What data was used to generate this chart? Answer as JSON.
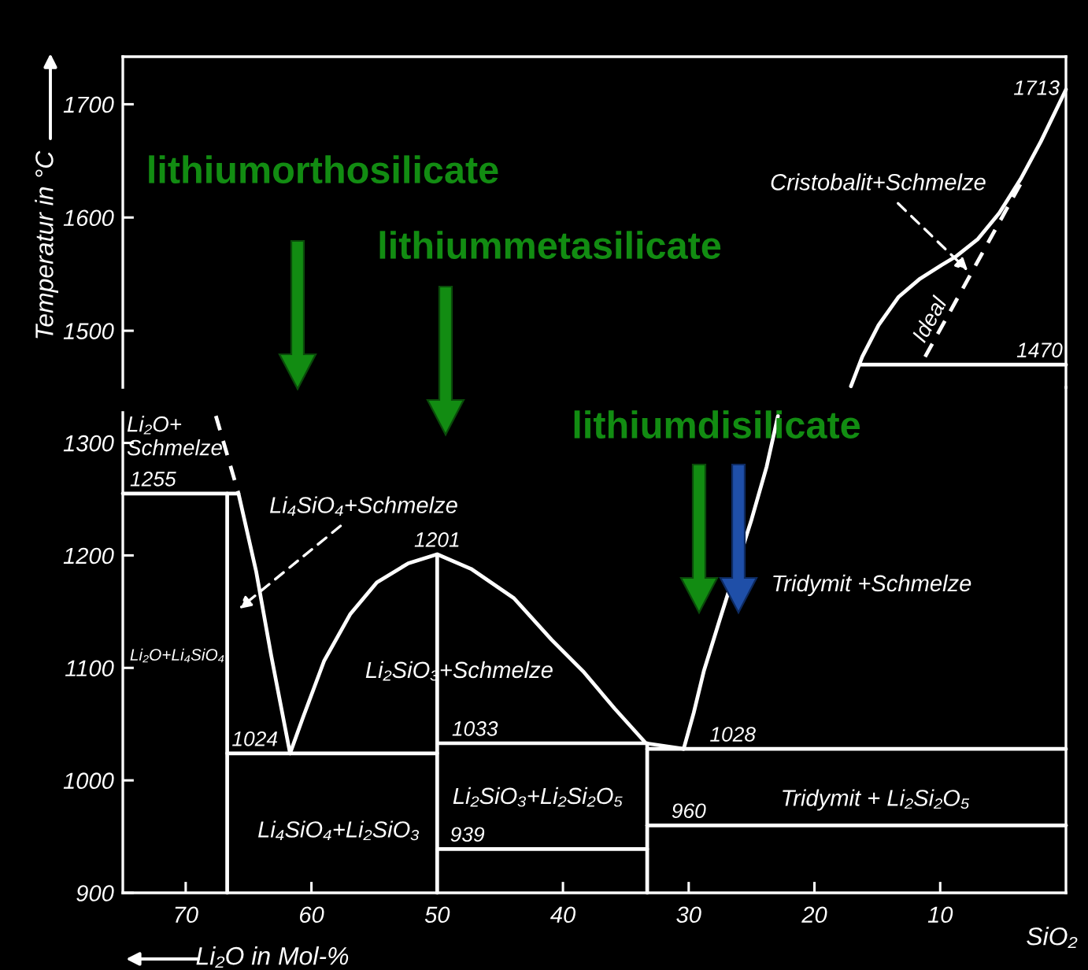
{
  "chart_data": [
    {
      "type": "line",
      "ylabel": "Temperatur in °C",
      "xlim": [
        75,
        0
      ],
      "ylim": [
        1450,
        1742
      ],
      "yticks": [
        1500,
        1600,
        1700
      ],
      "tick_labels": "y",
      "series": [
        {
          "color": "#ffffff",
          "x": [
            17.1,
            16.2,
            14.9,
            13.3,
            11.6,
            9.9,
            8.7,
            7.0,
            5.3,
            3.6,
            2.0,
            0
          ],
          "values": [
            1451,
            1477,
            1505,
            1530,
            1546,
            1558,
            1566,
            1581,
            1604,
            1634,
            1667,
            1713
          ]
        },
        {
          "color": "#ffffff",
          "x": [
            16.4,
            0
          ],
          "values": [
            1470,
            1470
          ]
        },
        {
          "name": "Ideal",
          "color": "#ffffff",
          "line_style": "dashed",
          "x": [
            11.2,
            3.4
          ],
          "values": [
            1477,
            1634
          ]
        }
      ],
      "annotations": [
        {
          "text": "Cristobalit+Schmelze",
          "x": 7.8,
          "y": 1553
        },
        {
          "text": "1713",
          "x": 0,
          "y": 1713
        },
        {
          "text": "1470",
          "x": 2.1,
          "y": 1470
        },
        "lithiumorthosilicate",
        "lithiummetasilicate"
      ]
    },
    {
      "type": "line",
      "xlabel": "Li₂O in Mol-%",
      "xlim": [
        75,
        0
      ],
      "ylim": [
        900,
        1327
      ],
      "xticks": [
        70,
        60,
        50,
        40,
        30,
        20,
        10
      ],
      "yticks": [
        900,
        1000,
        1100,
        1200,
        1300
      ],
      "series": [
        {
          "color": "#ffffff",
          "x": [
            75,
            65.8
          ],
          "values": [
            1255,
            1255
          ]
        },
        {
          "color": "#ffffff",
          "line_style": "dashed",
          "x": [
            67.6,
            65.8
          ],
          "values": [
            1324,
            1255
          ]
        },
        {
          "color": "#ffffff",
          "x": [
            65.8,
            64.4,
            63.2,
            61.7
          ],
          "values": [
            1255,
            1186,
            1111,
            1024
          ]
        },
        {
          "color": "#ffffff",
          "x": [
            66.7,
            66.7
          ],
          "values": [
            1255,
            900
          ]
        },
        {
          "color": "#ffffff",
          "x": [
            66.7,
            50
          ],
          "values": [
            1024,
            1024
          ]
        },
        {
          "color": "#ffffff",
          "x": [
            61.7,
            60.7,
            59.0,
            56.9,
            54.8,
            52.3,
            50,
            47.3,
            43.9,
            40.9,
            38.4,
            35.9,
            33.4,
            30.4
          ],
          "values": [
            1024,
            1055,
            1106,
            1148,
            1176,
            1193,
            1201,
            1188,
            1162,
            1125,
            1097,
            1064,
            1033,
            1028
          ]
        },
        {
          "color": "#ffffff",
          "x": [
            50,
            50
          ],
          "values": [
            1201,
            900
          ]
        },
        {
          "color": "#ffffff",
          "x": [
            50,
            33.3
          ],
          "values": [
            1033,
            1033
          ]
        },
        {
          "color": "#ffffff",
          "x": [
            50,
            33.3
          ],
          "values": [
            939,
            939
          ]
        },
        {
          "color": "#ffffff",
          "x": [
            33.3,
            33.3
          ],
          "values": [
            1033,
            900
          ]
        },
        {
          "color": "#ffffff",
          "x": [
            33.3,
            0
          ],
          "values": [
            1028,
            1028
          ]
        },
        {
          "color": "#ffffff",
          "x": [
            33.3,
            0
          ],
          "values": [
            960,
            960
          ]
        },
        {
          "color": "#ffffff",
          "x": [
            30.4,
            29.6,
            28.8,
            27.5,
            25.0,
            23.8,
            22.9
          ],
          "values": [
            1028,
            1060,
            1097,
            1144,
            1232,
            1279,
            1324
          ]
        }
      ],
      "annotations": [
        "Li₂O+\nSchmelze",
        {
          "text": "1255",
          "x": 72.6,
          "y": 1255
        },
        "Li₄SiO₄+Schmelze",
        {
          "text": "1201",
          "x": 50,
          "y": 1201
        },
        "Li₂O+Li₄SiO₄",
        "Li₂SiO₃+Schmelze",
        {
          "text": "1024",
          "x": 64.5,
          "y": 1024
        },
        {
          "text": "1033",
          "x": 47.0,
          "y": 1033
        },
        "Li₄SiO₄+Li₂SiO₃",
        {
          "text": "939",
          "x": 47.6,
          "y": 939
        },
        "Li₂SiO₃+Li₂Si₂O₅",
        {
          "text": "1028",
          "x": 26.5,
          "y": 1028
        },
        {
          "text": "960",
          "x": 30.0,
          "y": 960
        },
        "Tridymit +Schmelze",
        "Tridymit + Li₂Si₂O₅",
        "lithiumdisilicate",
        "SiO₂"
      ]
    }
  ]
}
